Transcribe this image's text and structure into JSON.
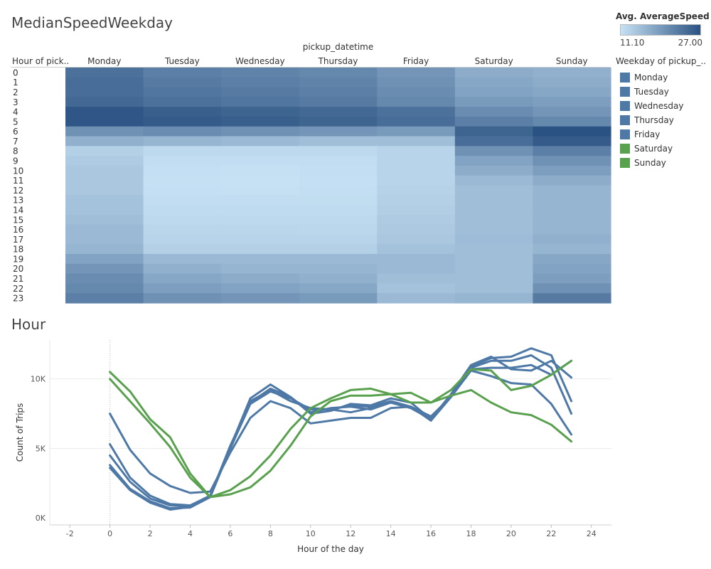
{
  "titles": {
    "heatmap": "MedianSpeedWeekday",
    "line": "Hour"
  },
  "legend": {
    "gradient_title": "Avg. AverageSpeed",
    "gradient_min": "11.10",
    "gradient_max": "27.00",
    "gradient_colors": [
      "#c6e1f4",
      "#2a5282"
    ],
    "color_title": "Weekday of pickup_..",
    "items": [
      {
        "label": "Monday",
        "color": "#4e79a7"
      },
      {
        "label": "Tuesday",
        "color": "#4e79a7"
      },
      {
        "label": "Wednesday",
        "color": "#4e79a7"
      },
      {
        "label": "Thursday",
        "color": "#4e79a7"
      },
      {
        "label": "Friday",
        "color": "#4e79a7"
      },
      {
        "label": "Saturday",
        "color": "#59a14f"
      },
      {
        "label": "Sunday",
        "color": "#59a14f"
      }
    ]
  },
  "chart_data": [
    {
      "type": "heatmap",
      "title": "MedianSpeedWeekday",
      "column_header": "pickup_datetime",
      "row_header": "Hour of pick..",
      "columns": [
        "Monday",
        "Tuesday",
        "Wednesday",
        "Thursday",
        "Friday",
        "Saturday",
        "Sunday"
      ],
      "rows": [
        "0",
        "1",
        "2",
        "3",
        "4",
        "5",
        "6",
        "7",
        "8",
        "9",
        "10",
        "11",
        "12",
        "13",
        "14",
        "15",
        "16",
        "17",
        "18",
        "19",
        "20",
        "21",
        "22",
        "23"
      ],
      "value_range": [
        11.1,
        27.0
      ],
      "values": [
        [
          23.5,
          22.0,
          21.5,
          21.0,
          19.5,
          17.0,
          16.5
        ],
        [
          24.0,
          22.5,
          22.0,
          21.5,
          20.0,
          17.5,
          17.0
        ],
        [
          24.0,
          23.0,
          22.5,
          22.0,
          20.5,
          18.0,
          17.5
        ],
        [
          24.5,
          23.5,
          23.0,
          22.5,
          21.0,
          19.0,
          18.5
        ],
        [
          26.5,
          25.5,
          25.0,
          24.5,
          23.5,
          20.5,
          19.5
        ],
        [
          26.5,
          26.0,
          25.5,
          25.0,
          24.0,
          22.0,
          21.0
        ],
        [
          20.0,
          20.5,
          20.0,
          19.5,
          19.0,
          25.0,
          27.0
        ],
        [
          16.5,
          16.0,
          15.5,
          15.0,
          15.0,
          24.0,
          26.0
        ],
        [
          13.0,
          12.0,
          12.0,
          12.0,
          12.5,
          20.0,
          22.0
        ],
        [
          13.5,
          11.5,
          11.5,
          11.5,
          12.5,
          18.0,
          20.0
        ],
        [
          14.0,
          11.3,
          11.2,
          11.4,
          12.5,
          17.0,
          18.5
        ],
        [
          14.0,
          11.2,
          11.1,
          11.3,
          12.5,
          15.5,
          17.0
        ],
        [
          14.0,
          11.3,
          11.2,
          11.4,
          12.8,
          15.0,
          16.0
        ],
        [
          14.5,
          11.5,
          11.5,
          11.6,
          13.0,
          15.0,
          16.0
        ],
        [
          14.5,
          11.8,
          11.8,
          11.8,
          13.2,
          15.0,
          16.0
        ],
        [
          15.0,
          12.0,
          12.0,
          12.0,
          13.5,
          15.0,
          16.0
        ],
        [
          15.5,
          12.3,
          12.3,
          12.2,
          13.8,
          15.0,
          16.0
        ],
        [
          15.5,
          12.5,
          12.5,
          12.5,
          14.0,
          15.2,
          16.5
        ],
        [
          16.0,
          13.0,
          13.0,
          13.0,
          14.5,
          15.0,
          16.0
        ],
        [
          18.0,
          15.5,
          15.5,
          15.5,
          15.5,
          15.0,
          17.5
        ],
        [
          19.5,
          16.5,
          16.0,
          16.0,
          15.5,
          15.0,
          18.0
        ],
        [
          20.5,
          17.5,
          17.0,
          16.5,
          15.0,
          15.0,
          18.5
        ],
        [
          21.0,
          18.5,
          18.0,
          17.5,
          14.5,
          15.0,
          20.0
        ],
        [
          22.0,
          20.0,
          19.5,
          19.0,
          15.5,
          16.0,
          22.5
        ]
      ]
    },
    {
      "type": "line",
      "title": "Hour",
      "xlabel": "Hour of the day",
      "ylabel": "Count of Trips",
      "xlim": [
        -3,
        25
      ],
      "ylim": [
        -500,
        12800
      ],
      "xticks": [
        "-2",
        "0",
        "2",
        "4",
        "6",
        "8",
        "10",
        "12",
        "14",
        "16",
        "18",
        "20",
        "22",
        "24"
      ],
      "yticks": [
        {
          "value": 0,
          "label": "0K"
        },
        {
          "value": 5000,
          "label": "5K"
        },
        {
          "value": 10000,
          "label": "10K"
        }
      ],
      "grid": true,
      "x": [
        0,
        1,
        2,
        3,
        4,
        5,
        6,
        7,
        8,
        9,
        10,
        11,
        12,
        13,
        14,
        15,
        16,
        17,
        18,
        19,
        20,
        21,
        22,
        23
      ],
      "series": [
        {
          "name": "Monday",
          "color": "#4e79a7",
          "values": [
            7500,
            4900,
            3200,
            2300,
            1800,
            1900,
            4700,
            7200,
            8400,
            7900,
            6800,
            7000,
            7200,
            7200,
            7900,
            8000,
            7300,
            8700,
            10600,
            10200,
            9700,
            9600,
            8200,
            6000
          ]
        },
        {
          "name": "Tuesday",
          "color": "#4e79a7",
          "values": [
            3600,
            2000,
            1100,
            600,
            800,
            1600,
            5200,
            8300,
            9300,
            8700,
            7600,
            7900,
            8000,
            7800,
            8300,
            7900,
            7100,
            8800,
            10800,
            11300,
            11300,
            11700,
            10800,
            7500
          ]
        },
        {
          "name": "Wednesday",
          "color": "#4e79a7",
          "values": [
            3800,
            2100,
            1200,
            700,
            750,
            1500,
            5000,
            8200,
            9100,
            8600,
            7800,
            7800,
            8100,
            8000,
            8400,
            8000,
            7000,
            8700,
            10900,
            11500,
            11600,
            12200,
            11700,
            8400
          ]
        },
        {
          "name": "Thursday",
          "color": "#4e79a7",
          "values": [
            4500,
            2600,
            1400,
            900,
            850,
            1550,
            5100,
            8600,
            9600,
            8700,
            7500,
            7700,
            8200,
            8100,
            8600,
            8300,
            7100,
            8900,
            11000,
            11600,
            10700,
            10600,
            11300,
            10100
          ]
        },
        {
          "name": "Friday",
          "color": "#4e79a7",
          "values": [
            5300,
            2900,
            1600,
            1000,
            900,
            1600,
            5000,
            8400,
            9200,
            8400,
            7900,
            7800,
            7600,
            7900,
            8300,
            8000,
            7200,
            8800,
            10700,
            10800,
            10800,
            11000,
            10300,
            11300
          ]
        },
        {
          "name": "Saturday",
          "color": "#59a14f",
          "values": [
            10500,
            9100,
            7100,
            5800,
            3200,
            1500,
            1700,
            2200,
            3400,
            5200,
            7300,
            8400,
            8800,
            8800,
            8900,
            9000,
            8300,
            9200,
            10700,
            10600,
            9200,
            9500,
            10300,
            11300
          ]
        },
        {
          "name": "Sunday",
          "color": "#59a14f",
          "values": [
            10000,
            8400,
            6800,
            5100,
            2900,
            1500,
            2000,
            3000,
            4500,
            6400,
            7900,
            8600,
            9200,
            9300,
            8900,
            8300,
            8300,
            8800,
            9200,
            8300,
            7600,
            7400,
            6700,
            5500
          ]
        }
      ]
    }
  ]
}
